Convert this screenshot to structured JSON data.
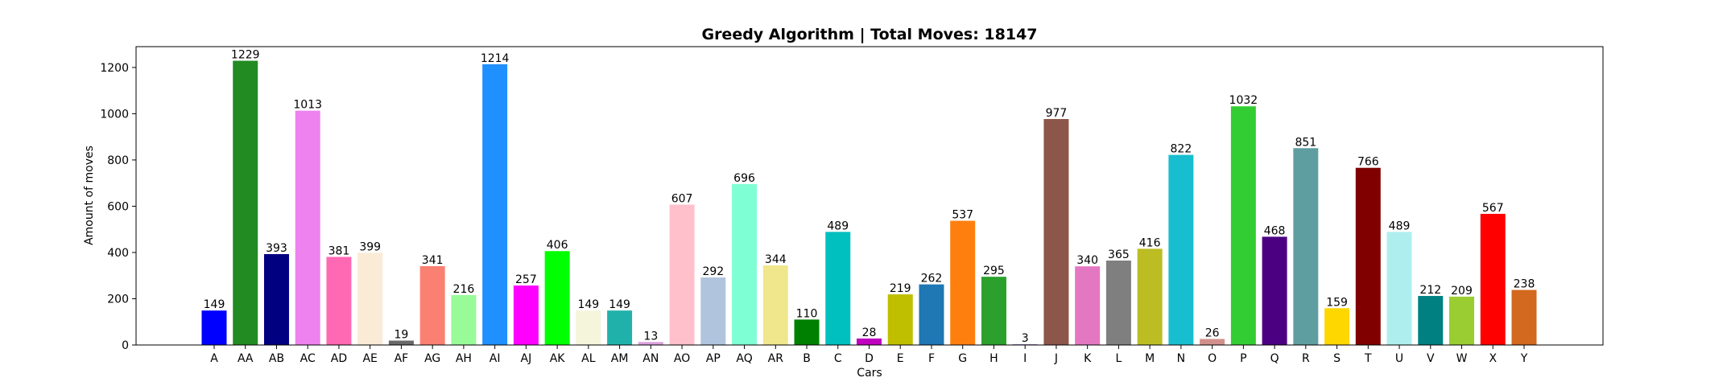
{
  "chart_data": {
    "type": "bar",
    "title": "Greedy Algorithm | Total Moves: 18147",
    "xlabel": "Cars",
    "ylabel": "Amount of moves",
    "ylim": [
      0,
      1290
    ],
    "yticks": [
      0,
      200,
      400,
      600,
      800,
      1000,
      1200
    ],
    "grid": false,
    "categories": [
      "A",
      "AA",
      "AB",
      "AC",
      "AD",
      "AE",
      "AF",
      "AG",
      "AH",
      "AI",
      "AJ",
      "AK",
      "AL",
      "AM",
      "AN",
      "AO",
      "AP",
      "AQ",
      "AR",
      "B",
      "C",
      "D",
      "E",
      "F",
      "G",
      "H",
      "I",
      "J",
      "K",
      "L",
      "M",
      "N",
      "O",
      "P",
      "Q",
      "R",
      "S",
      "T",
      "U",
      "V",
      "W",
      "X",
      "Y"
    ],
    "values": [
      149,
      1229,
      393,
      1013,
      381,
      399,
      19,
      341,
      216,
      1214,
      257,
      406,
      149,
      149,
      13,
      607,
      292,
      696,
      344,
      110,
      489,
      28,
      219,
      262,
      537,
      295,
      3,
      977,
      340,
      365,
      416,
      822,
      26,
      1032,
      468,
      851,
      159,
      766,
      489,
      212,
      209,
      567,
      238
    ],
    "colors": [
      "#0000ff",
      "#228b22",
      "#000080",
      "#ee82ee",
      "#ff69b4",
      "#faebd7",
      "#696969",
      "#fa8072",
      "#98fb98",
      "#1e90ff",
      "#ff00ff",
      "#00ff00",
      "#f5f5dc",
      "#20b2aa",
      "#dda0dd",
      "#ffc0cb",
      "#b0c4de",
      "#7fffd4",
      "#f0e68c",
      "#008000",
      "#00bfbf",
      "#bf00bf",
      "#bfbf00",
      "#1f77b4",
      "#ff7f0e",
      "#2ca02c",
      "#9467bd",
      "#8c564b",
      "#e377c2",
      "#7f7f7f",
      "#bcbd22",
      "#17becf",
      "#d2908c",
      "#32cd32",
      "#4b0082",
      "#5f9ea0",
      "#ffd700",
      "#800000",
      "#afeeee",
      "#008080",
      "#9acd32",
      "#ff0000",
      "#d2691e"
    ]
  }
}
